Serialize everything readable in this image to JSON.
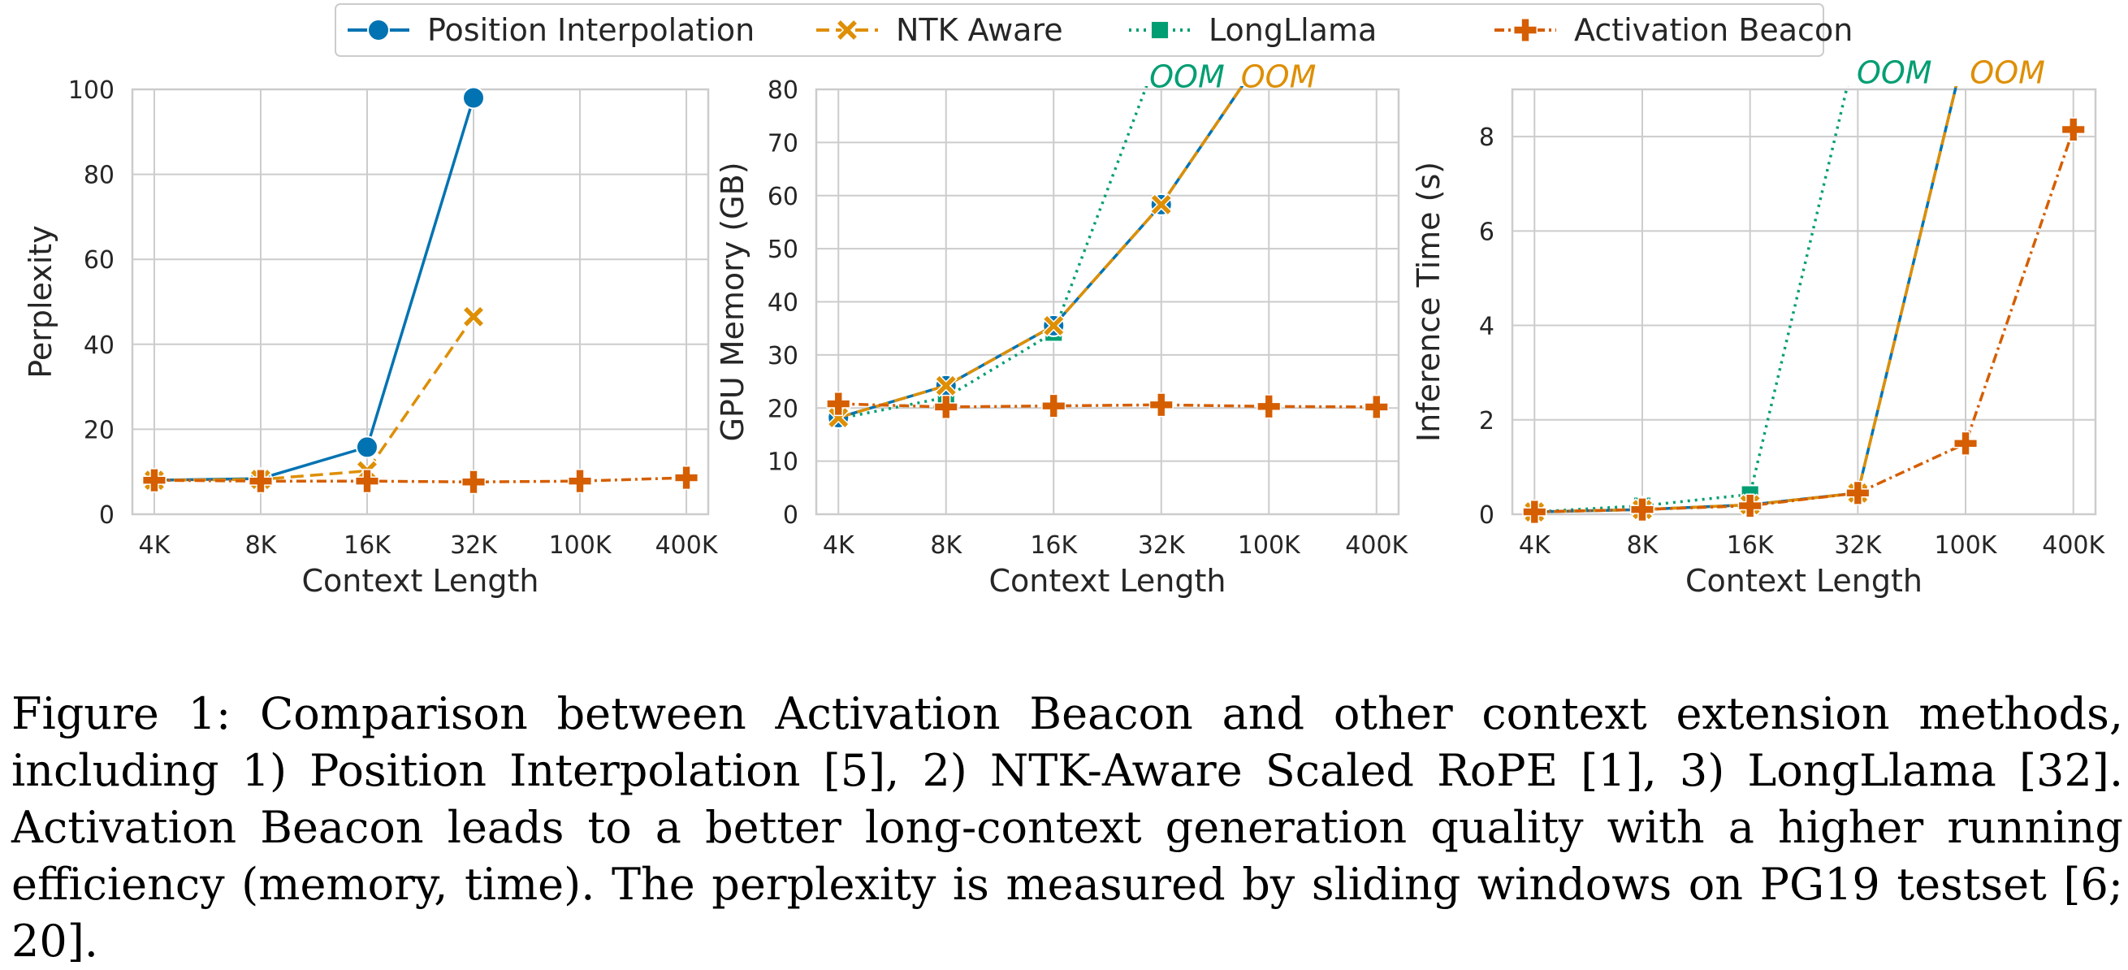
{
  "chart_data": [
    {
      "type": "line",
      "xlabel": "Context Length",
      "ylabel": "Perplexity",
      "categories": [
        "4K",
        "8K",
        "16K",
        "32K",
        "100K",
        "400K"
      ],
      "yticks": [
        "0",
        "20",
        "40",
        "60",
        "80",
        "100"
      ],
      "ylim": [
        0,
        100
      ],
      "grid": true,
      "series": [
        {
          "name": "Position Interpolation",
          "values": [
            8.0,
            8.4,
            15.8,
            98.0,
            null,
            null
          ]
        },
        {
          "name": "NTK Aware",
          "values": [
            8.0,
            8.2,
            10.2,
            46.5,
            null,
            null
          ]
        },
        {
          "name": "LongLlama",
          "values": [
            null,
            null,
            null,
            null,
            null,
            null
          ]
        },
        {
          "name": "Activation Beacon",
          "values": [
            8.0,
            7.8,
            7.8,
            7.6,
            7.8,
            8.6
          ]
        }
      ],
      "annotations": []
    },
    {
      "type": "line",
      "xlabel": "Context Length",
      "ylabel": "GPU Memory (GB)",
      "categories": [
        "4K",
        "8K",
        "16K",
        "32K",
        "100K",
        "400K"
      ],
      "yticks": [
        "0",
        "10",
        "20",
        "30",
        "40",
        "50",
        "60",
        "70",
        "80"
      ],
      "ylim": [
        0,
        80
      ],
      "grid": true,
      "series": [
        {
          "name": "Position Interpolation",
          "values": [
            18.2,
            24.2,
            35.5,
            58.3,
            88.0,
            null
          ]
        },
        {
          "name": "NTK Aware",
          "values": [
            18.2,
            24.2,
            35.5,
            58.3,
            88.0,
            null
          ]
        },
        {
          "name": "LongLlama",
          "values": [
            18.0,
            22.0,
            34.2,
            88.0,
            null,
            null
          ]
        },
        {
          "name": "Activation Beacon",
          "values": [
            20.8,
            20.2,
            20.4,
            20.6,
            20.3,
            20.2
          ]
        }
      ],
      "annotations": [
        {
          "text": "OOM",
          "x": 2.95,
          "y": 81,
          "series": "LongLlama"
        },
        {
          "text": "OOM",
          "x": 3.8,
          "y": 81,
          "series": "NTK Aware"
        }
      ]
    },
    {
      "type": "line",
      "xlabel": "Context Length",
      "ylabel": "Inference Time (s)",
      "categories": [
        "4K",
        "8K",
        "16K",
        "32K",
        "100K",
        "400K"
      ],
      "yticks": [
        "0",
        "2",
        "4",
        "6",
        "8"
      ],
      "ylim": [
        0,
        9
      ],
      "grid": true,
      "series": [
        {
          "name": "Position Interpolation",
          "values": [
            0.05,
            0.1,
            0.2,
            0.45,
            9.9,
            null
          ]
        },
        {
          "name": "NTK Aware",
          "values": [
            0.05,
            0.1,
            0.2,
            0.45,
            9.9,
            null
          ]
        },
        {
          "name": "LongLlama",
          "values": [
            0.05,
            0.18,
            0.42,
            10.0,
            null,
            null
          ]
        },
        {
          "name": "Activation Beacon",
          "values": [
            0.05,
            0.1,
            0.18,
            0.45,
            1.5,
            8.15
          ]
        }
      ],
      "annotations": [
        {
          "text": "OOM",
          "x": 3.05,
          "y": 9.2,
          "series": "LongLlama"
        },
        {
          "text": "OOM",
          "x": 4.1,
          "y": 9.2,
          "series": "NTK Aware"
        }
      ]
    }
  ],
  "legend": {
    "placement": "top-center",
    "items": [
      {
        "label": "Position Interpolation",
        "color": "#0173b2",
        "marker": "circle",
        "dash": "solid"
      },
      {
        "label": "NTK Aware",
        "color": "#de8f05",
        "marker": "x",
        "dash": "dashed"
      },
      {
        "label": "LongLlama",
        "color": "#029e73",
        "marker": "square",
        "dash": "dotted"
      },
      {
        "label": "Activation Beacon",
        "color": "#d55e00",
        "marker": "plus",
        "dash": "dashdot"
      }
    ]
  },
  "caption": "Figure 1: Comparison between Activation Beacon and other context extension methods, including 1) Position Interpolation [5], 2) NTK-Aware Scaled RoPE [1], 3) LongLlama [32]. Activation Beacon leads to a better long-context generation quality with a higher running efficiency (memory, time). The perplexity is measured by sliding windows on PG19 testset [6; 20]."
}
